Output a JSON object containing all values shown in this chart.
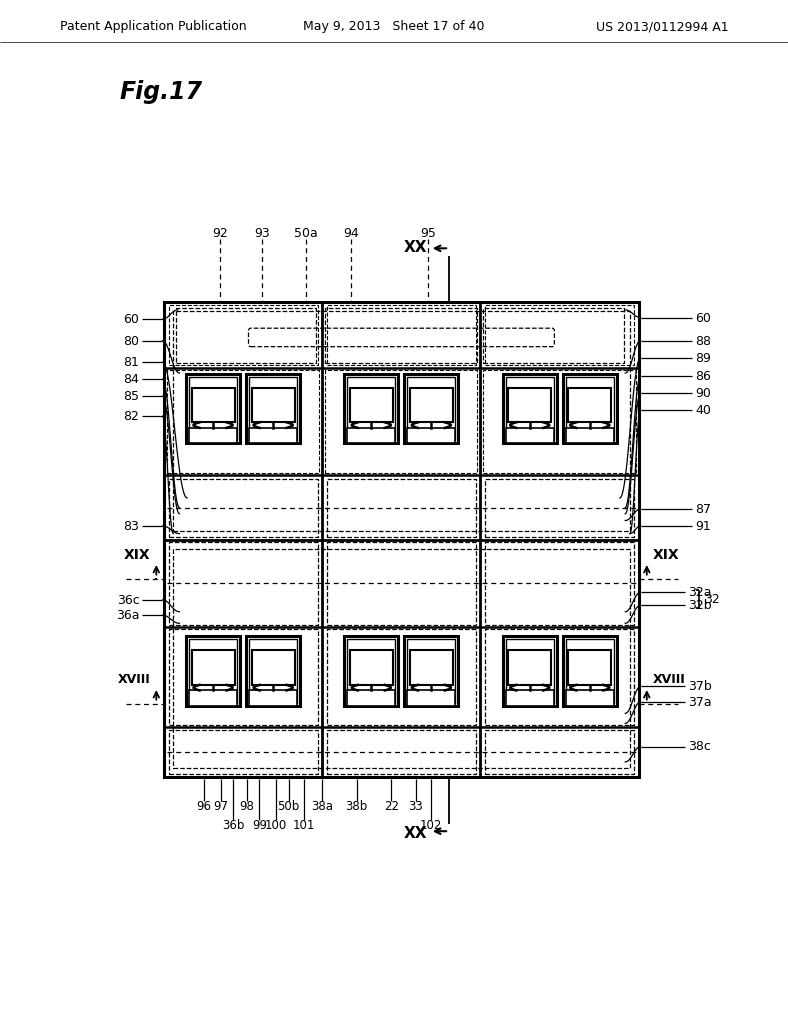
{
  "header_left": "Patent Application Publication",
  "header_mid": "May 9, 2013   Sheet 17 of 40",
  "header_right": "US 2013/0112994 A1",
  "fig_title": "Fig.17",
  "bg_color": "#ffffff"
}
